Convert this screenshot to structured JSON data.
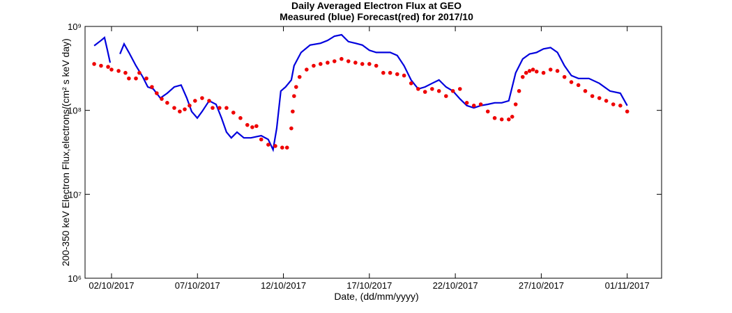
{
  "chart_data": {
    "type": "line",
    "title": [
      "Daily Averaged Electron Flux at GEO",
      "Measured (blue) Forecast(red) for 2017/10"
    ],
    "xlabel": "Date, (dd/mm/yyyy)",
    "ylabel": "200-350 keV Electron Flux,electrons/(cm² s keV day)",
    "xlim": [
      0.46,
      34
    ],
    "ylim": [
      1000000,
      1000000000
    ],
    "ylog": true,
    "xticks": [
      {
        "value": 2,
        "label": "02/10/2017"
      },
      {
        "value": 7,
        "label": "07/10/2017"
      },
      {
        "value": 12,
        "label": "12/10/2017"
      },
      {
        "value": 17,
        "label": "17/10/2017"
      },
      {
        "value": 22,
        "label": "22/10/2017"
      },
      {
        "value": 27,
        "label": "27/10/2017"
      },
      {
        "value": 32,
        "label": "01/11/2017"
      }
    ],
    "yticks": [
      {
        "value": 1000000,
        "label": "10⁶"
      },
      {
        "value": 10000000,
        "label": "10⁷"
      },
      {
        "value": 100000000,
        "label": "10⁸"
      },
      {
        "value": 1000000000,
        "label": "10⁹"
      }
    ],
    "series": [
      {
        "color": "#0000dd",
        "style": "line",
        "x": [
          0.99,
          1.39,
          1.59,
          1.76,
          1.92,
          null,
          2.49,
          2.73,
          3.01,
          3.42,
          3.82,
          4.11,
          4.43,
          4.84,
          5.24,
          5.65,
          6.05,
          6.38,
          6.66,
          6.99,
          7.27,
          7.68,
          8.08,
          8.4,
          8.69,
          8.97,
          9.3,
          9.7,
          10.11,
          10.71,
          11.12,
          11.4,
          11.61,
          11.85,
          12.13,
          12.46,
          12.62,
          13.03,
          13.55,
          14.16,
          14.57,
          14.97,
          15.38,
          15.78,
          16.19,
          16.59,
          17.0,
          17.4,
          18.21,
          18.62,
          19.02,
          19.43,
          19.84,
          20.24,
          20.65,
          21.05,
          21.46,
          21.86,
          22.27,
          22.67,
          23.08,
          23.48,
          23.89,
          24.29,
          24.7,
          25.11,
          25.51,
          25.92,
          26.32,
          26.73,
          27.13,
          27.54,
          27.94,
          28.35,
          28.75,
          29.16,
          29.77,
          30.38,
          31.0,
          31.6,
          32.0
        ],
        "values": [
          590000000,
          680000000,
          737000000,
          520000000,
          370000000,
          null,
          470000000,
          620000000,
          490000000,
          340000000,
          250000000,
          190000000,
          180000000,
          140000000,
          160000000,
          190000000,
          200000000,
          140000000,
          97000000,
          81000000,
          97000000,
          130000000,
          118000000,
          81000000,
          55000000,
          47000000,
          55000000,
          47000000,
          47000000,
          50000000,
          45000000,
          34000000,
          61000000,
          170000000,
          190000000,
          230000000,
          340000000,
          490000000,
          600000000,
          630000000,
          680000000,
          765000000,
          796000000,
          660000000,
          630000000,
          600000000,
          520000000,
          490000000,
          490000000,
          450000000,
          340000000,
          230000000,
          180000000,
          190000000,
          210000000,
          230000000,
          190000000,
          170000000,
          137000000,
          114000000,
          107000000,
          114000000,
          118000000,
          123000000,
          123000000,
          130000000,
          280000000,
          410000000,
          470000000,
          490000000,
          540000000,
          560000000,
          490000000,
          340000000,
          260000000,
          240000000,
          240000000,
          210000000,
          170000000,
          160000000,
          114000000
        ]
      },
      {
        "color": "#ee0000",
        "style": "markers",
        "x": [
          0.99,
          1.39,
          1.8,
          2.0,
          2.41,
          2.81,
          3.01,
          3.42,
          3.62,
          4.03,
          4.35,
          4.63,
          4.92,
          5.24,
          5.65,
          5.97,
          6.26,
          6.54,
          6.86,
          7.27,
          7.68,
          7.88,
          8.28,
          8.69,
          9.09,
          9.5,
          9.9,
          10.19,
          10.43,
          10.71,
          11.12,
          11.53,
          11.93,
          12.21,
          12.46,
          12.54,
          12.62,
          12.74,
          12.94,
          13.35,
          13.76,
          14.16,
          14.57,
          14.97,
          15.38,
          15.78,
          16.19,
          16.59,
          17.0,
          17.4,
          17.81,
          18.21,
          18.62,
          19.02,
          19.43,
          19.84,
          20.24,
          20.65,
          21.05,
          21.46,
          21.86,
          22.27,
          22.67,
          23.08,
          23.48,
          23.89,
          24.29,
          24.7,
          25.11,
          25.31,
          25.51,
          25.71,
          25.92,
          26.12,
          26.32,
          26.52,
          26.73,
          27.13,
          27.54,
          27.94,
          28.35,
          28.75,
          29.16,
          29.56,
          29.97,
          30.38,
          30.78,
          31.19,
          31.6,
          32.0
        ],
        "values": [
          357000000,
          340000000,
          330000000,
          306000000,
          295000000,
          280000000,
          240000000,
          240000000,
          280000000,
          240000000,
          190000000,
          160000000,
          137000000,
          123000000,
          107000000,
          97000000,
          103000000,
          114000000,
          130000000,
          140000000,
          130000000,
          107000000,
          107000000,
          107000000,
          94000000,
          81000000,
          67000000,
          63000000,
          65000000,
          45000000,
          39000000,
          37600000,
          36000000,
          36000000,
          61000000,
          97000000,
          148000000,
          190000000,
          250000000,
          306000000,
          340000000,
          357000000,
          370000000,
          385000000,
          410000000,
          385000000,
          370000000,
          357000000,
          357000000,
          340000000,
          280000000,
          280000000,
          270000000,
          260000000,
          210000000,
          180000000,
          166000000,
          180000000,
          170000000,
          148000000,
          170000000,
          180000000,
          123000000,
          114000000,
          118000000,
          97000000,
          81000000,
          78000000,
          78000000,
          84000000,
          118000000,
          170000000,
          250000000,
          280000000,
          295000000,
          306000000,
          290000000,
          280000000,
          306000000,
          295000000,
          250000000,
          217000000,
          200000000,
          170000000,
          148000000,
          140000000,
          130000000,
          118000000,
          114000000,
          97000000
        ]
      }
    ]
  }
}
